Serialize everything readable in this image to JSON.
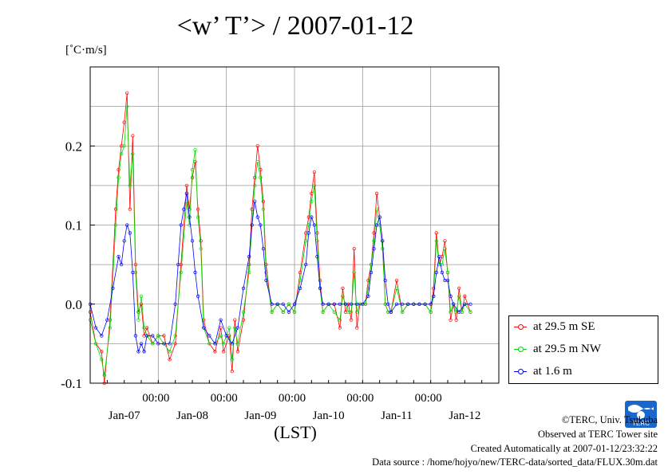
{
  "chart_data": {
    "type": "line",
    "title": "<w’ T’> / 2007-01-12",
    "ylabel": "[˚C·m/s]",
    "xlabel": "(LST)",
    "ylim": [
      -0.1,
      0.3
    ],
    "xlim": [
      0,
      144
    ],
    "grid": true,
    "legend_position": "right",
    "yticks": [
      {
        "value": -0.1,
        "label": "-0.1"
      },
      {
        "value": 0.0,
        "label": "0.0"
      },
      {
        "value": 0.1,
        "label": "0.1"
      },
      {
        "value": 0.2,
        "label": "0.2"
      }
    ],
    "xticks": [
      {
        "value": 24,
        "time": "00:00",
        "date": "Jan-08"
      },
      {
        "value": 48,
        "time": "00:00",
        "date": "Jan-09"
      },
      {
        "value": 72,
        "time": "00:00",
        "date": "Jan-10"
      },
      {
        "value": 96,
        "time": "00:00",
        "date": "Jan-11"
      },
      {
        "value": 120,
        "time": "00:00",
        "date": "Jan-12"
      }
    ],
    "date_labels": [
      {
        "value": 12,
        "label": "Jan-07"
      },
      {
        "value": 36,
        "label": "Jan-08"
      },
      {
        "value": 60,
        "label": "Jan-09"
      },
      {
        "value": 84,
        "label": "Jan-10"
      },
      {
        "value": 108,
        "label": "Jan-11"
      },
      {
        "value": 132,
        "label": "Jan-12"
      }
    ],
    "series": [
      {
        "name": "at 29.5 m SE",
        "color": "#ff0000",
        "points": [
          [
            0,
            -0.01
          ],
          [
            2,
            -0.05
          ],
          [
            4,
            -0.06
          ],
          [
            5,
            -0.1
          ],
          [
            7,
            -0.02
          ],
          [
            9,
            0.12
          ],
          [
            10,
            0.17
          ],
          [
            11,
            0.2
          ],
          [
            12,
            0.23
          ],
          [
            13,
            0.267
          ],
          [
            14,
            0.12
          ],
          [
            15,
            0.213
          ],
          [
            16,
            0.05
          ],
          [
            17,
            -0.01
          ],
          [
            18,
            0.0
          ],
          [
            19,
            -0.04
          ],
          [
            20,
            -0.03
          ],
          [
            22,
            -0.05
          ],
          [
            24,
            -0.04
          ],
          [
            26,
            -0.04
          ],
          [
            28,
            -0.07
          ],
          [
            30,
            -0.05
          ],
          [
            32,
            0.05
          ],
          [
            34,
            0.15
          ],
          [
            35,
            0.12
          ],
          [
            36,
            0.16
          ],
          [
            37,
            0.18
          ],
          [
            38,
            0.12
          ],
          [
            39,
            0.08
          ],
          [
            40,
            -0.02
          ],
          [
            42,
            -0.05
          ],
          [
            44,
            -0.06
          ],
          [
            46,
            -0.03
          ],
          [
            47,
            -0.06
          ],
          [
            49,
            -0.04
          ],
          [
            50,
            -0.085
          ],
          [
            51,
            -0.02
          ],
          [
            52,
            -0.06
          ],
          [
            54,
            -0.02
          ],
          [
            56,
            0.05
          ],
          [
            57,
            0.12
          ],
          [
            58,
            0.16
          ],
          [
            59,
            0.2
          ],
          [
            60,
            0.17
          ],
          [
            61,
            0.13
          ],
          [
            62,
            0.05
          ],
          [
            64,
            -0.01
          ],
          [
            66,
            0.0
          ],
          [
            68,
            -0.01
          ],
          [
            70,
            0.0
          ],
          [
            72,
            -0.01
          ],
          [
            74,
            0.04
          ],
          [
            76,
            0.09
          ],
          [
            77,
            0.11
          ],
          [
            78,
            0.14
          ],
          [
            79,
            0.167
          ],
          [
            80,
            0.09
          ],
          [
            81,
            0.03
          ],
          [
            82,
            -0.01
          ],
          [
            84,
            0.0
          ],
          [
            86,
            0.0
          ],
          [
            88,
            -0.03
          ],
          [
            89,
            0.02
          ],
          [
            90,
            -0.01
          ],
          [
            91,
            0.0
          ],
          [
            92,
            -0.02
          ],
          [
            93,
            0.07
          ],
          [
            94,
            -0.03
          ],
          [
            95,
            0.0
          ],
          [
            97,
            0.0
          ],
          [
            98,
            0.03
          ],
          [
            99,
            0.05
          ],
          [
            100,
            0.09
          ],
          [
            101,
            0.14
          ],
          [
            102,
            0.11
          ],
          [
            103,
            0.08
          ],
          [
            104,
            0.0
          ],
          [
            105,
            -0.01
          ],
          [
            106,
            -0.01
          ],
          [
            108,
            0.03
          ],
          [
            110,
            -0.01
          ],
          [
            112,
            0.0
          ],
          [
            114,
            0.0
          ],
          [
            116,
            0.0
          ],
          [
            118,
            0.0
          ],
          [
            120,
            -0.01
          ],
          [
            121,
            0.02
          ],
          [
            122,
            0.09
          ],
          [
            123,
            0.05
          ],
          [
            124,
            0.06
          ],
          [
            125,
            0.08
          ],
          [
            126,
            0.04
          ],
          [
            127,
            -0.02
          ],
          [
            128,
            0.0
          ],
          [
            129,
            -0.02
          ],
          [
            130,
            0.02
          ],
          [
            131,
            -0.01
          ],
          [
            132,
            0.01
          ],
          [
            134,
            -0.01
          ]
        ]
      },
      {
        "name": "at 29.5 m NW",
        "color": "#00dd00",
        "points": [
          [
            0,
            -0.02
          ],
          [
            2,
            -0.05
          ],
          [
            4,
            -0.07
          ],
          [
            5,
            -0.09
          ],
          [
            7,
            -0.03
          ],
          [
            9,
            0.1
          ],
          [
            10,
            0.16
          ],
          [
            11,
            0.19
          ],
          [
            12,
            0.2
          ],
          [
            13,
            0.25
          ],
          [
            14,
            0.15
          ],
          [
            15,
            0.19
          ],
          [
            16,
            0.04
          ],
          [
            17,
            -0.02
          ],
          [
            18,
            0.01
          ],
          [
            19,
            -0.03
          ],
          [
            20,
            -0.04
          ],
          [
            22,
            -0.05
          ],
          [
            24,
            -0.04
          ],
          [
            26,
            -0.05
          ],
          [
            28,
            -0.06
          ],
          [
            30,
            -0.04
          ],
          [
            32,
            0.04
          ],
          [
            34,
            0.13
          ],
          [
            35,
            0.1
          ],
          [
            36,
            0.17
          ],
          [
            37,
            0.195
          ],
          [
            38,
            0.11
          ],
          [
            39,
            0.07
          ],
          [
            40,
            -0.03
          ],
          [
            42,
            -0.05
          ],
          [
            44,
            -0.05
          ],
          [
            46,
            -0.04
          ],
          [
            47,
            -0.05
          ],
          [
            49,
            -0.03
          ],
          [
            50,
            -0.07
          ],
          [
            51,
            -0.03
          ],
          [
            52,
            -0.05
          ],
          [
            54,
            -0.01
          ],
          [
            56,
            0.04
          ],
          [
            57,
            0.1
          ],
          [
            58,
            0.15
          ],
          [
            59,
            0.18
          ],
          [
            60,
            0.16
          ],
          [
            61,
            0.12
          ],
          [
            62,
            0.04
          ],
          [
            64,
            -0.01
          ],
          [
            66,
            0.0
          ],
          [
            68,
            -0.01
          ],
          [
            70,
            0.0
          ],
          [
            72,
            -0.01
          ],
          [
            74,
            0.03
          ],
          [
            76,
            0.08
          ],
          [
            77,
            0.1
          ],
          [
            78,
            0.13
          ],
          [
            79,
            0.15
          ],
          [
            80,
            0.08
          ],
          [
            81,
            0.02
          ],
          [
            82,
            -0.01
          ],
          [
            84,
            0.0
          ],
          [
            86,
            -0.01
          ],
          [
            88,
            -0.02
          ],
          [
            89,
            0.01
          ],
          [
            90,
            0.0
          ],
          [
            91,
            -0.01
          ],
          [
            92,
            -0.01
          ],
          [
            93,
            0.04
          ],
          [
            94,
            -0.01
          ],
          [
            95,
            0.0
          ],
          [
            97,
            0.0
          ],
          [
            98,
            0.02
          ],
          [
            99,
            0.05
          ],
          [
            100,
            0.08
          ],
          [
            101,
            0.12
          ],
          [
            102,
            0.1
          ],
          [
            103,
            0.07
          ],
          [
            104,
            0.0
          ],
          [
            105,
            -0.01
          ],
          [
            106,
            -0.01
          ],
          [
            108,
            0.02
          ],
          [
            110,
            -0.01
          ],
          [
            112,
            0.0
          ],
          [
            114,
            0.0
          ],
          [
            116,
            0.0
          ],
          [
            118,
            0.0
          ],
          [
            120,
            -0.01
          ],
          [
            121,
            0.01
          ],
          [
            122,
            0.08
          ],
          [
            123,
            0.05
          ],
          [
            124,
            0.05
          ],
          [
            125,
            0.07
          ],
          [
            126,
            0.04
          ],
          [
            127,
            -0.01
          ],
          [
            128,
            0.0
          ],
          [
            129,
            -0.01
          ],
          [
            130,
            0.01
          ],
          [
            131,
            -0.01
          ],
          [
            132,
            0.0
          ],
          [
            134,
            -0.01
          ]
        ]
      },
      {
        "name": "at 1.6 m",
        "color": "#0000ff",
        "points": [
          [
            0,
            0.0
          ],
          [
            2,
            -0.03
          ],
          [
            4,
            -0.04
          ],
          [
            6,
            -0.02
          ],
          [
            8,
            0.02
          ],
          [
            10,
            0.06
          ],
          [
            11,
            0.05
          ],
          [
            12,
            0.08
          ],
          [
            13,
            0.1
          ],
          [
            14,
            0.09
          ],
          [
            15,
            0.04
          ],
          [
            16,
            -0.04
          ],
          [
            17,
            -0.06
          ],
          [
            18,
            -0.05
          ],
          [
            19,
            -0.06
          ],
          [
            20,
            -0.04
          ],
          [
            22,
            -0.04
          ],
          [
            24,
            -0.05
          ],
          [
            26,
            -0.05
          ],
          [
            28,
            -0.05
          ],
          [
            30,
            0.0
          ],
          [
            31,
            0.05
          ],
          [
            32,
            0.1
          ],
          [
            33,
            0.12
          ],
          [
            34,
            0.14
          ],
          [
            35,
            0.11
          ],
          [
            36,
            0.08
          ],
          [
            37,
            0.04
          ],
          [
            38,
            0.01
          ],
          [
            40,
            -0.03
          ],
          [
            42,
            -0.04
          ],
          [
            44,
            -0.05
          ],
          [
            46,
            -0.02
          ],
          [
            48,
            -0.04
          ],
          [
            50,
            -0.05
          ],
          [
            52,
            -0.03
          ],
          [
            54,
            0.02
          ],
          [
            56,
            0.06
          ],
          [
            57,
            0.1
          ],
          [
            58,
            0.13
          ],
          [
            59,
            0.11
          ],
          [
            60,
            0.1
          ],
          [
            61,
            0.07
          ],
          [
            62,
            0.03
          ],
          [
            64,
            0.0
          ],
          [
            66,
            0.0
          ],
          [
            68,
            0.0
          ],
          [
            70,
            -0.01
          ],
          [
            72,
            0.0
          ],
          [
            74,
            0.02
          ],
          [
            76,
            0.05
          ],
          [
            77,
            0.09
          ],
          [
            78,
            0.11
          ],
          [
            79,
            0.1
          ],
          [
            80,
            0.06
          ],
          [
            81,
            0.02
          ],
          [
            82,
            0.0
          ],
          [
            84,
            0.0
          ],
          [
            86,
            0.0
          ],
          [
            88,
            0.0
          ],
          [
            90,
            0.0
          ],
          [
            92,
            0.0
          ],
          [
            94,
            0.0
          ],
          [
            96,
            0.0
          ],
          [
            98,
            0.01
          ],
          [
            99,
            0.04
          ],
          [
            100,
            0.07
          ],
          [
            101,
            0.1
          ],
          [
            102,
            0.11
          ],
          [
            103,
            0.08
          ],
          [
            104,
            0.03
          ],
          [
            105,
            0.0
          ],
          [
            106,
            -0.01
          ],
          [
            108,
            0.0
          ],
          [
            110,
            0.0
          ],
          [
            112,
            0.0
          ],
          [
            114,
            0.0
          ],
          [
            116,
            0.0
          ],
          [
            118,
            0.0
          ],
          [
            120,
            0.0
          ],
          [
            121,
            0.01
          ],
          [
            122,
            0.04
          ],
          [
            123,
            0.06
          ],
          [
            124,
            0.04
          ],
          [
            125,
            0.03
          ],
          [
            126,
            0.03
          ],
          [
            127,
            0.01
          ],
          [
            128,
            0.0
          ],
          [
            130,
            -0.01
          ],
          [
            132,
            0.0
          ],
          [
            134,
            0.0
          ]
        ]
      }
    ]
  },
  "footer": {
    "copyright": "©TERC, Univ. Tsukuba",
    "observed": "Observed at TERC Tower site",
    "created": "Created Automatically at 2007-01-12/23:32:22",
    "source": "Data source : /home/hojyo/new/TERC-data/sorted_data/FLUX.30m.dat"
  },
  "logo": {
    "text": "TERC",
    "color": "#1a66cc"
  }
}
